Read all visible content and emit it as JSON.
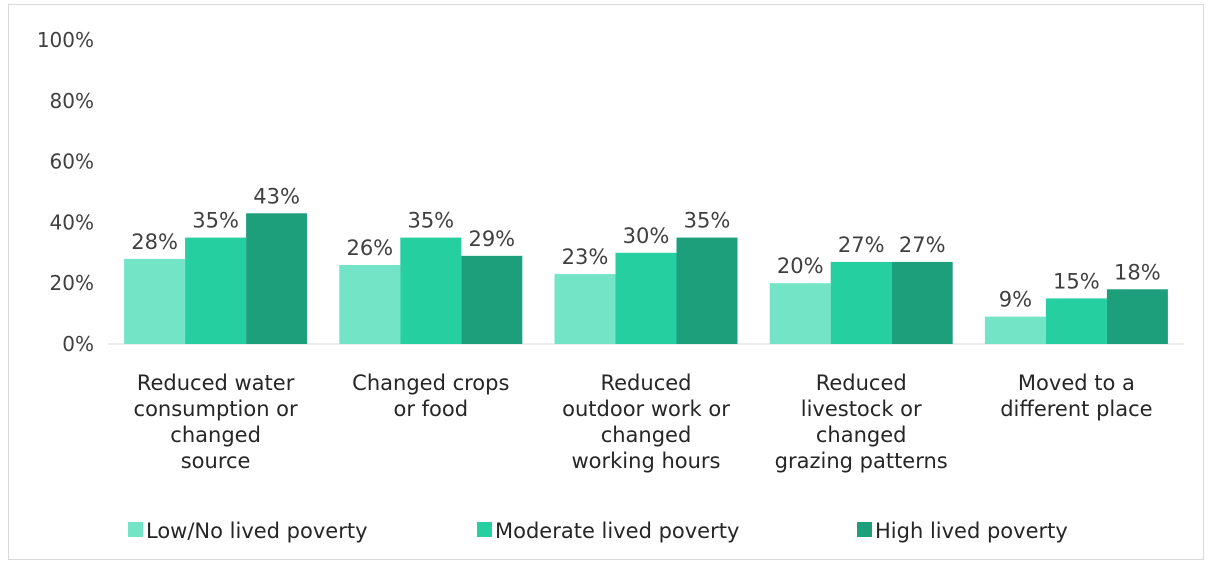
{
  "chart_data": {
    "type": "bar",
    "title": "",
    "xlabel": "",
    "ylabel": "",
    "ylim": [
      0,
      100
    ],
    "yticks": [
      "0%",
      "20%",
      "40%",
      "60%",
      "80%",
      "100%"
    ],
    "ytick_values": [
      0,
      20,
      40,
      60,
      80,
      100
    ],
    "grid": false,
    "legend_position": "bottom",
    "categories": [
      "Reduced water consumption or changed source",
      "Changed crops or food",
      "Reduced outdoor work or changed working hours",
      "Reduced livestock or changed grazing patterns",
      "Moved to a different place"
    ],
    "category_lines": [
      [
        "Reduced water",
        "consumption or",
        "changed",
        "source"
      ],
      [
        "Changed crops",
        "or food"
      ],
      [
        "Reduced",
        "outdoor work or",
        "changed",
        "working hours"
      ],
      [
        "Reduced",
        "livestock or",
        "changed",
        "grazing patterns"
      ],
      [
        "Moved to a",
        "different place"
      ]
    ],
    "series": [
      {
        "name": "Low/No lived poverty",
        "color": "#74e4c6",
        "values": [
          28,
          26,
          23,
          20,
          9
        ]
      },
      {
        "name": "Moderate lived poverty",
        "color": "#26cfa0",
        "values": [
          35,
          35,
          30,
          27,
          15
        ]
      },
      {
        "name": "High lived poverty",
        "color": "#1d9f7b",
        "values": [
          43,
          29,
          35,
          27,
          18
        ]
      }
    ],
    "value_suffix": "%"
  }
}
